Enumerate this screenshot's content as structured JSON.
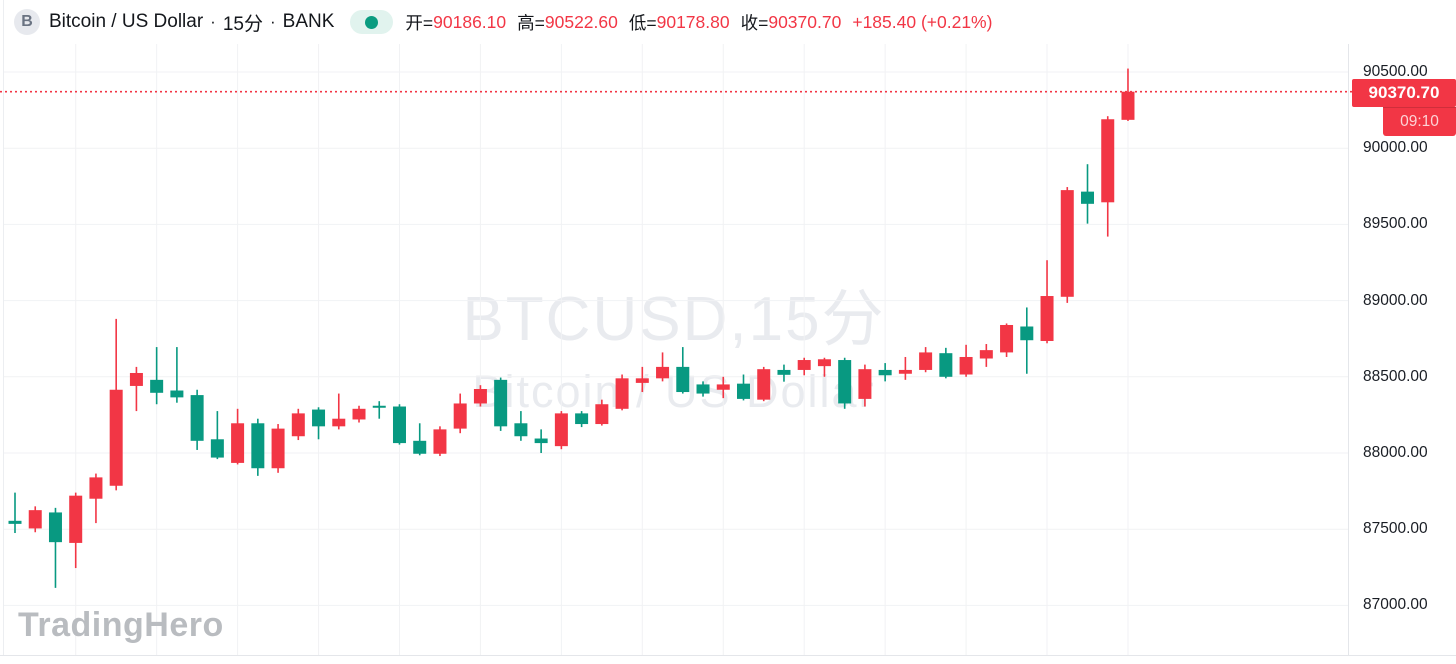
{
  "header": {
    "logo_letter": "B",
    "title": "Bitcoin / US Dollar",
    "separator": "·",
    "interval": "15分",
    "exchange": "BANK",
    "ohlc": [
      {
        "label": "开=",
        "value": "90186.10"
      },
      {
        "label": "高=",
        "value": "90522.60"
      },
      {
        "label": "低=",
        "value": "90178.80"
      },
      {
        "label": "收=",
        "value": "90370.70"
      }
    ],
    "change": "+185.40 (+0.21%)"
  },
  "watermark": {
    "line1": "BTCUSD,15分",
    "line2": "Bitcoin / US Dollar"
  },
  "brand": "TradingHero",
  "price_axis": {
    "ticks": [
      "90500.00",
      "90000.00",
      "89500.00",
      "89000.00",
      "88500.00",
      "88000.00",
      "87500.00",
      "87000.00"
    ],
    "last_price_label": "90370.70",
    "last_time_label": "09:10"
  },
  "colors": {
    "up": "#f23645",
    "down": "#089981",
    "badge": "#f23645",
    "grid": "#f1f2f4",
    "dotted_line": "#f23645"
  },
  "chart_data": {
    "type": "candlestick",
    "title": "Bitcoin / US Dollar · 15分 · BANK",
    "symbol": "BTCUSD",
    "interval_minutes": 15,
    "exchange": "BANK",
    "color_convention": "red = up, green = down (CN style)",
    "last_price": 90370.7,
    "last_time": "09:10",
    "open": 90186.1,
    "high": 90522.6,
    "low": 90178.8,
    "close": 90370.7,
    "change": 185.4,
    "change_pct": 0.21,
    "y_ticks": [
      90500,
      90000,
      89500,
      89000,
      88500,
      88000,
      87500,
      87000
    ],
    "ylim": [
      86900,
      90560
    ],
    "grid": true,
    "candles_ohlc": [
      [
        87555,
        87740,
        87475,
        87535
      ],
      [
        87505,
        87650,
        87480,
        87625
      ],
      [
        87610,
        87640,
        87115,
        87415
      ],
      [
        87410,
        87740,
        87245,
        87720
      ],
      [
        87700,
        87865,
        87540,
        87840
      ],
      [
        87785,
        88880,
        87755,
        88415
      ],
      [
        88440,
        88565,
        88275,
        88525
      ],
      [
        88480,
        88695,
        88320,
        88395
      ],
      [
        88410,
        88695,
        88330,
        88365
      ],
      [
        88380,
        88415,
        88020,
        88080
      ],
      [
        88090,
        88275,
        87960,
        87970
      ],
      [
        87935,
        88290,
        87925,
        88195
      ],
      [
        88195,
        88225,
        87850,
        87900
      ],
      [
        87900,
        88190,
        87870,
        88160
      ],
      [
        88110,
        88290,
        88085,
        88260
      ],
      [
        88285,
        88300,
        88090,
        88175
      ],
      [
        88175,
        88390,
        88155,
        88225
      ],
      [
        88220,
        88310,
        88200,
        88290
      ],
      [
        88310,
        88340,
        88225,
        88300
      ],
      [
        88305,
        88320,
        88055,
        88065
      ],
      [
        88080,
        88195,
        87985,
        87995
      ],
      [
        87995,
        88175,
        87980,
        88155
      ],
      [
        88160,
        88390,
        88130,
        88325
      ],
      [
        88325,
        88445,
        88305,
        88420
      ],
      [
        88480,
        88495,
        88145,
        88175
      ],
      [
        88195,
        88275,
        88080,
        88110
      ],
      [
        88095,
        88155,
        88000,
        88065
      ],
      [
        88045,
        88275,
        88025,
        88260
      ],
      [
        88260,
        88275,
        88170,
        88190
      ],
      [
        88190,
        88350,
        88180,
        88320
      ],
      [
        88290,
        88515,
        88280,
        88490
      ],
      [
        88460,
        88565,
        88400,
        88490
      ],
      [
        88490,
        88660,
        88470,
        88565
      ],
      [
        88565,
        88695,
        88390,
        88400
      ],
      [
        88450,
        88470,
        88370,
        88390
      ],
      [
        88415,
        88500,
        88360,
        88450
      ],
      [
        88455,
        88515,
        88345,
        88355
      ],
      [
        88350,
        88565,
        88340,
        88550
      ],
      [
        88545,
        88580,
        88468,
        88513
      ],
      [
        88545,
        88625,
        88510,
        88610
      ],
      [
        88570,
        88625,
        88500,
        88615
      ],
      [
        88610,
        88625,
        88290,
        88325
      ],
      [
        88355,
        88580,
        88305,
        88550
      ],
      [
        88545,
        88590,
        88470,
        88510
      ],
      [
        88520,
        88630,
        88480,
        88545
      ],
      [
        88545,
        88695,
        88530,
        88660
      ],
      [
        88655,
        88690,
        88490,
        88500
      ],
      [
        88515,
        88710,
        88500,
        88630
      ],
      [
        88620,
        88715,
        88565,
        88675
      ],
      [
        88660,
        88850,
        88630,
        88840
      ],
      [
        88830,
        88955,
        88520,
        88740
      ],
      [
        88735,
        89265,
        88720,
        89030
      ],
      [
        89025,
        89745,
        88985,
        89725
      ],
      [
        89715,
        89895,
        89505,
        89635
      ],
      [
        89645,
        90210,
        89420,
        90190
      ],
      [
        90186.1,
        90522.6,
        90178.8,
        90370.7
      ]
    ]
  }
}
